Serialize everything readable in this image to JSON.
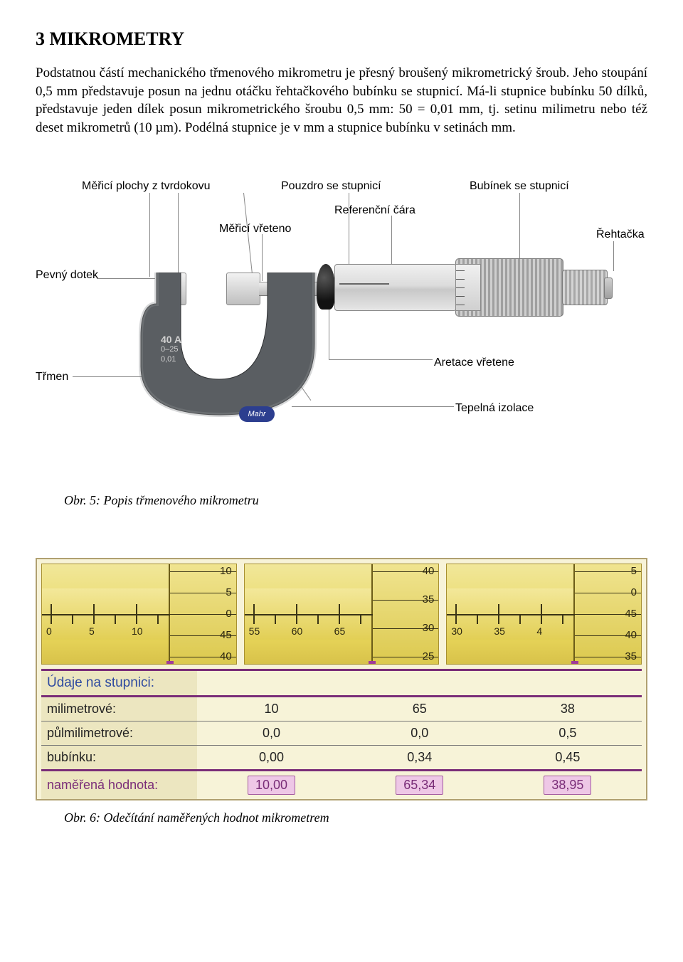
{
  "title": "3 MIKROMETRY",
  "paragraph": "Podstatnou částí mechanického třmenového mikrometru je přesný broušený mikrometrický šroub. Jeho stoupání 0,5 mm představuje posun na jednu otáčku řehtačkového bubínku se stupnicí. Má-li stupnice bubínku 50 dílků, představuje jeden dílek posun mikrometrického šroubu 0,5 mm: 50 = 0,01 mm, tj. setinu milimetru nebo též deset mikrometrů (10 µm). Podélná stupnice je v mm a stupnice bubínku v setinách mm.",
  "fig5_caption": "Obr. 5: Popis třmenového mikrometru",
  "fig6_caption": "Obr. 6: Odečítání naměřených hodnot mikrometrem",
  "labels": {
    "pevny_dotek": "Pevný dotek",
    "merici_plochy": "Měřicí plochy z tvrdokovu",
    "merici_vreteno": "Měřicí vřeteno",
    "pouzdro": "Pouzdro se stupnicí",
    "referencni": "Referenční čára",
    "bubinek": "Bubínek se stupnicí",
    "rehtacka": "Řehtačka",
    "aretace": "Aretace vřetene",
    "tepelna": "Tepelná izolace",
    "trmen": "Třmen"
  },
  "device_marks": {
    "line1": "40 A",
    "line2": "0–25",
    "line3": "0,01",
    "brand": "Mahr"
  },
  "scales": [
    {
      "mm_values": [
        "0",
        "5",
        "10"
      ],
      "thimble_values": [
        "10",
        "5",
        "0",
        "45",
        "40"
      ],
      "center_index": 2
    },
    {
      "mm_values": [
        "55",
        "60",
        "65"
      ],
      "thimble_values": [
        "40",
        "35",
        "30",
        "25"
      ],
      "center_index": 1
    },
    {
      "mm_values": [
        "30",
        "35",
        "4"
      ],
      "thimble_values": [
        "5",
        "0",
        "45",
        "40",
        "35"
      ],
      "center_index": 2
    }
  ],
  "table": {
    "header": "Údaje na stupnici:",
    "rows": [
      {
        "label": "milimetrové:",
        "v": [
          "10",
          "65",
          "38"
        ]
      },
      {
        "label": "půlmilimetrové:",
        "v": [
          "0,0",
          "0,0",
          "0,5"
        ]
      },
      {
        "label": "bubínku:",
        "v": [
          "0,00",
          "0,34",
          "0,45"
        ]
      }
    ],
    "result": {
      "label": "naměřená hodnota:",
      "v": [
        "10,00",
        "65,34",
        "38,95"
      ]
    }
  }
}
